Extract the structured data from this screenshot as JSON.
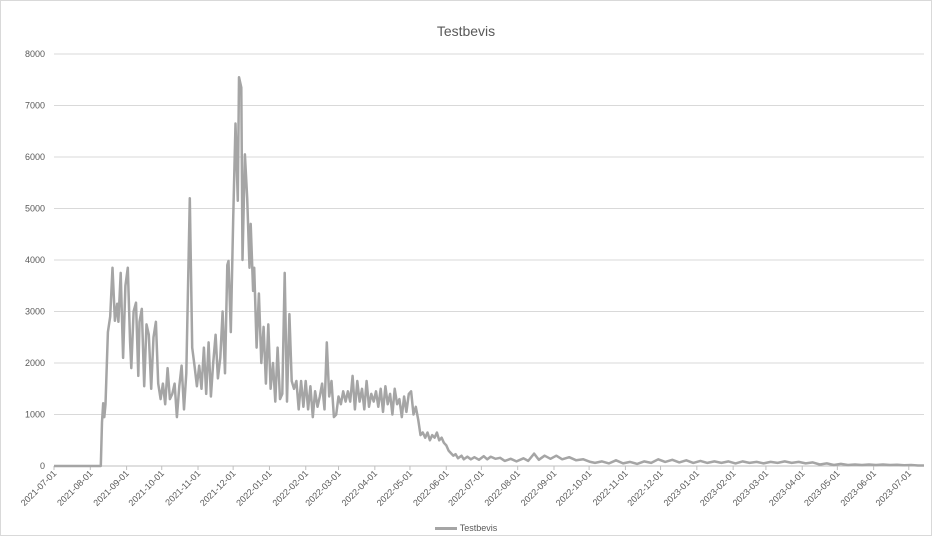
{
  "chart_data": {
    "type": "line",
    "title": "Testbevis",
    "xlabel": "",
    "ylabel": "",
    "ylim": [
      0,
      8000
    ],
    "yticks": [
      0,
      1000,
      2000,
      3000,
      4000,
      5000,
      6000,
      7000,
      8000
    ],
    "xticks": [
      "2021-07-01",
      "2021-08-01",
      "2021-09-01",
      "2021-10-01",
      "2021-11-01",
      "2021-12-01",
      "2022-01-01",
      "2022-02-01",
      "2022-03-01",
      "2022-04-01",
      "2022-05-01",
      "2022-06-01",
      "2022-07-01",
      "2022-08-01",
      "2022-09-01",
      "2022-10-01",
      "2022-11-01",
      "2022-12-01",
      "2023-01-01",
      "2023-02-01",
      "2023-03-01",
      "2023-04-01",
      "2023-05-01",
      "2023-06-01",
      "2023-07-01"
    ],
    "xlim": [
      "2021-07-01",
      "2023-07-14"
    ],
    "grid": true,
    "legend_position": "bottom",
    "series": [
      {
        "name": "Testbevis",
        "color": "#a5a5a5",
        "points": [
          [
            "2021-07-01",
            0
          ],
          [
            "2021-08-10",
            0
          ],
          [
            "2021-08-11",
            850
          ],
          [
            "2021-08-12",
            1220
          ],
          [
            "2021-08-13",
            950
          ],
          [
            "2021-08-14",
            1200
          ],
          [
            "2021-08-16",
            2600
          ],
          [
            "2021-08-18",
            2900
          ],
          [
            "2021-08-20",
            3850
          ],
          [
            "2021-08-22",
            2820
          ],
          [
            "2021-08-24",
            3150
          ],
          [
            "2021-08-25",
            2800
          ],
          [
            "2021-08-27",
            3750
          ],
          [
            "2021-08-29",
            2100
          ],
          [
            "2021-08-31",
            3500
          ],
          [
            "2021-09-02",
            3850
          ],
          [
            "2021-09-04",
            2400
          ],
          [
            "2021-09-05",
            1900
          ],
          [
            "2021-09-07",
            3000
          ],
          [
            "2021-09-09",
            3170
          ],
          [
            "2021-09-11",
            1750
          ],
          [
            "2021-09-12",
            2800
          ],
          [
            "2021-09-14",
            3050
          ],
          [
            "2021-09-16",
            1550
          ],
          [
            "2021-09-18",
            2750
          ],
          [
            "2021-09-20",
            2550
          ],
          [
            "2021-09-22",
            1500
          ],
          [
            "2021-09-24",
            2500
          ],
          [
            "2021-09-26",
            2800
          ],
          [
            "2021-09-28",
            1600
          ],
          [
            "2021-09-30",
            1300
          ],
          [
            "2021-10-02",
            1600
          ],
          [
            "2021-10-04",
            1200
          ],
          [
            "2021-10-06",
            1900
          ],
          [
            "2021-10-08",
            1300
          ],
          [
            "2021-10-10",
            1400
          ],
          [
            "2021-10-12",
            1600
          ],
          [
            "2021-10-14",
            950
          ],
          [
            "2021-10-16",
            1550
          ],
          [
            "2021-10-18",
            1950
          ],
          [
            "2021-10-20",
            1100
          ],
          [
            "2021-10-22",
            1800
          ],
          [
            "2021-10-25",
            5200
          ],
          [
            "2021-10-27",
            2300
          ],
          [
            "2021-10-29",
            1950
          ],
          [
            "2021-10-31",
            1550
          ],
          [
            "2021-11-02",
            1950
          ],
          [
            "2021-11-04",
            1500
          ],
          [
            "2021-11-06",
            2300
          ],
          [
            "2021-11-08",
            1400
          ],
          [
            "2021-11-10",
            2400
          ],
          [
            "2021-11-12",
            1350
          ],
          [
            "2021-11-14",
            2000
          ],
          [
            "2021-11-16",
            2550
          ],
          [
            "2021-11-18",
            1700
          ],
          [
            "2021-11-20",
            2100
          ],
          [
            "2021-11-22",
            3000
          ],
          [
            "2021-11-24",
            1800
          ],
          [
            "2021-11-26",
            3900
          ],
          [
            "2021-11-27",
            3980
          ],
          [
            "2021-11-29",
            2600
          ],
          [
            "2021-12-01",
            4800
          ],
          [
            "2021-12-03",
            6650
          ],
          [
            "2021-12-05",
            5150
          ],
          [
            "2021-12-06",
            7550
          ],
          [
            "2021-12-08",
            7350
          ],
          [
            "2021-12-09",
            4000
          ],
          [
            "2021-12-11",
            6050
          ],
          [
            "2021-12-13",
            5200
          ],
          [
            "2021-12-15",
            3850
          ],
          [
            "2021-12-16",
            4700
          ],
          [
            "2021-12-18",
            3400
          ],
          [
            "2021-12-19",
            3850
          ],
          [
            "2021-12-21",
            2300
          ],
          [
            "2021-12-23",
            3350
          ],
          [
            "2021-12-25",
            2000
          ],
          [
            "2021-12-27",
            2700
          ],
          [
            "2021-12-29",
            1600
          ],
          [
            "2021-12-31",
            2750
          ],
          [
            "2022-01-02",
            1500
          ],
          [
            "2022-01-04",
            2000
          ],
          [
            "2022-01-06",
            1250
          ],
          [
            "2022-01-08",
            2300
          ],
          [
            "2022-01-10",
            1300
          ],
          [
            "2022-01-12",
            1400
          ],
          [
            "2022-01-14",
            3750
          ],
          [
            "2022-01-16",
            1250
          ],
          [
            "2022-01-18",
            2950
          ],
          [
            "2022-01-20",
            1650
          ],
          [
            "2022-01-22",
            1500
          ],
          [
            "2022-01-24",
            1650
          ],
          [
            "2022-01-26",
            1100
          ],
          [
            "2022-01-28",
            1650
          ],
          [
            "2022-01-30",
            1150
          ],
          [
            "2022-02-01",
            1650
          ],
          [
            "2022-02-03",
            1100
          ],
          [
            "2022-02-05",
            1550
          ],
          [
            "2022-02-07",
            950
          ],
          [
            "2022-02-09",
            1450
          ],
          [
            "2022-02-11",
            1150
          ],
          [
            "2022-02-13",
            1350
          ],
          [
            "2022-02-15",
            1600
          ],
          [
            "2022-02-17",
            1100
          ],
          [
            "2022-02-19",
            2400
          ],
          [
            "2022-02-21",
            1350
          ],
          [
            "2022-02-23",
            1650
          ],
          [
            "2022-02-25",
            950
          ],
          [
            "2022-02-27",
            1000
          ],
          [
            "2022-03-01",
            1350
          ],
          [
            "2022-03-03",
            1200
          ],
          [
            "2022-03-05",
            1450
          ],
          [
            "2022-03-07",
            1250
          ],
          [
            "2022-03-09",
            1450
          ],
          [
            "2022-03-11",
            1250
          ],
          [
            "2022-03-13",
            1750
          ],
          [
            "2022-03-15",
            1100
          ],
          [
            "2022-03-17",
            1650
          ],
          [
            "2022-03-19",
            1250
          ],
          [
            "2022-03-21",
            1500
          ],
          [
            "2022-03-23",
            1100
          ],
          [
            "2022-03-25",
            1650
          ],
          [
            "2022-03-27",
            1150
          ],
          [
            "2022-03-29",
            1400
          ],
          [
            "2022-03-31",
            1250
          ],
          [
            "2022-04-02",
            1450
          ],
          [
            "2022-04-04",
            1150
          ],
          [
            "2022-04-06",
            1500
          ],
          [
            "2022-04-08",
            1050
          ],
          [
            "2022-04-10",
            1550
          ],
          [
            "2022-04-12",
            1200
          ],
          [
            "2022-04-14",
            1400
          ],
          [
            "2022-04-16",
            1000
          ],
          [
            "2022-04-18",
            1500
          ],
          [
            "2022-04-20",
            1200
          ],
          [
            "2022-04-22",
            1300
          ],
          [
            "2022-04-24",
            950
          ],
          [
            "2022-04-26",
            1350
          ],
          [
            "2022-04-28",
            1050
          ],
          [
            "2022-04-30",
            1400
          ],
          [
            "2022-05-02",
            1450
          ],
          [
            "2022-05-04",
            1000
          ],
          [
            "2022-05-06",
            1150
          ],
          [
            "2022-05-08",
            900
          ],
          [
            "2022-05-10",
            600
          ],
          [
            "2022-05-12",
            650
          ],
          [
            "2022-05-14",
            550
          ],
          [
            "2022-05-16",
            650
          ],
          [
            "2022-05-18",
            500
          ],
          [
            "2022-05-20",
            600
          ],
          [
            "2022-05-22",
            550
          ],
          [
            "2022-05-24",
            650
          ],
          [
            "2022-05-26",
            500
          ],
          [
            "2022-05-28",
            550
          ],
          [
            "2022-05-30",
            450
          ],
          [
            "2022-06-01",
            400
          ],
          [
            "2022-06-03",
            300
          ],
          [
            "2022-06-05",
            250
          ],
          [
            "2022-06-07",
            200
          ],
          [
            "2022-06-09",
            230
          ],
          [
            "2022-06-11",
            150
          ],
          [
            "2022-06-14",
            200
          ],
          [
            "2022-06-16",
            130
          ],
          [
            "2022-06-19",
            180
          ],
          [
            "2022-06-22",
            130
          ],
          [
            "2022-06-25",
            170
          ],
          [
            "2022-06-29",
            120
          ],
          [
            "2022-07-03",
            190
          ],
          [
            "2022-07-06",
            130
          ],
          [
            "2022-07-09",
            180
          ],
          [
            "2022-07-13",
            140
          ],
          [
            "2022-07-17",
            160
          ],
          [
            "2022-07-21",
            100
          ],
          [
            "2022-07-26",
            140
          ],
          [
            "2022-07-31",
            90
          ],
          [
            "2022-08-06",
            150
          ],
          [
            "2022-08-10",
            100
          ],
          [
            "2022-08-15",
            240
          ],
          [
            "2022-08-19",
            120
          ],
          [
            "2022-08-24",
            200
          ],
          [
            "2022-08-29",
            140
          ],
          [
            "2022-09-03",
            200
          ],
          [
            "2022-09-08",
            130
          ],
          [
            "2022-09-14",
            170
          ],
          [
            "2022-09-20",
            110
          ],
          [
            "2022-09-26",
            130
          ],
          [
            "2022-10-02",
            80
          ],
          [
            "2022-10-06",
            60
          ],
          [
            "2022-10-12",
            90
          ],
          [
            "2022-10-18",
            50
          ],
          [
            "2022-10-24",
            110
          ],
          [
            "2022-10-30",
            50
          ],
          [
            "2022-11-05",
            80
          ],
          [
            "2022-11-11",
            40
          ],
          [
            "2022-11-17",
            90
          ],
          [
            "2022-11-23",
            60
          ],
          [
            "2022-11-29",
            130
          ],
          [
            "2022-12-05",
            80
          ],
          [
            "2022-12-11",
            120
          ],
          [
            "2022-12-17",
            70
          ],
          [
            "2022-12-23",
            110
          ],
          [
            "2022-12-29",
            60
          ],
          [
            "2023-01-04",
            100
          ],
          [
            "2023-01-10",
            60
          ],
          [
            "2023-01-16",
            90
          ],
          [
            "2023-01-22",
            60
          ],
          [
            "2023-01-28",
            90
          ],
          [
            "2023-02-03",
            50
          ],
          [
            "2023-02-09",
            90
          ],
          [
            "2023-02-15",
            60
          ],
          [
            "2023-02-21",
            80
          ],
          [
            "2023-02-27",
            50
          ],
          [
            "2023-03-05",
            80
          ],
          [
            "2023-03-11",
            60
          ],
          [
            "2023-03-17",
            90
          ],
          [
            "2023-03-23",
            60
          ],
          [
            "2023-03-29",
            80
          ],
          [
            "2023-04-04",
            50
          ],
          [
            "2023-04-10",
            70
          ],
          [
            "2023-04-16",
            30
          ],
          [
            "2023-04-22",
            50
          ],
          [
            "2023-04-28",
            20
          ],
          [
            "2023-05-04",
            40
          ],
          [
            "2023-05-10",
            20
          ],
          [
            "2023-05-16",
            30
          ],
          [
            "2023-05-22",
            20
          ],
          [
            "2023-05-28",
            30
          ],
          [
            "2023-06-03",
            20
          ],
          [
            "2023-06-09",
            30
          ],
          [
            "2023-06-15",
            20
          ],
          [
            "2023-06-21",
            25
          ],
          [
            "2023-06-27",
            15
          ],
          [
            "2023-07-03",
            20
          ],
          [
            "2023-07-09",
            10
          ],
          [
            "2023-07-14",
            10
          ]
        ]
      }
    ]
  }
}
